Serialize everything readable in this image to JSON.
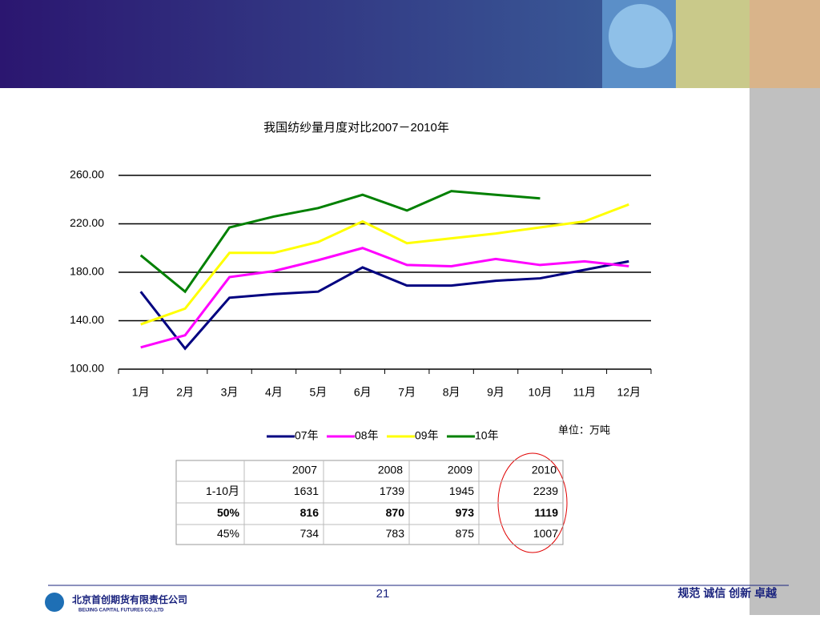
{
  "chart_data": {
    "type": "line",
    "title": "我国纺纱量月度对比2007－2010年",
    "categories": [
      "1月",
      "2月",
      "3月",
      "4月",
      "5月",
      "6月",
      "7月",
      "8月",
      "9月",
      "10月",
      "11月",
      "12月"
    ],
    "series": [
      {
        "name": "07年",
        "color": "#000080",
        "values": [
          164,
          117,
          159,
          162,
          164,
          184,
          169,
          169,
          173,
          175,
          182,
          189
        ]
      },
      {
        "name": "08年",
        "color": "#ff00ff",
        "values": [
          118,
          128,
          176,
          181,
          190,
          200,
          186,
          185,
          191,
          186,
          189,
          185
        ]
      },
      {
        "name": "09年",
        "color": "#ffff00",
        "values": [
          137,
          150,
          196,
          196,
          205,
          222,
          204,
          208,
          212,
          217,
          222,
          236
        ]
      },
      {
        "name": "10年",
        "color": "#008000",
        "values": [
          194,
          164,
          217,
          226,
          233,
          244,
          231,
          247,
          244,
          241,
          null,
          null
        ]
      }
    ],
    "ylim": [
      100,
      260
    ],
    "yticks": [
      {
        "value": 100,
        "label": "100.00"
      },
      {
        "value": 140,
        "label": "140.00"
      },
      {
        "value": 180,
        "label": "180.00"
      },
      {
        "value": 220,
        "label": "220.00"
      },
      {
        "value": 260,
        "label": "260.00"
      }
    ],
    "grid": true,
    "legend": "bottom",
    "unit_note": "单位：万吨"
  },
  "table": {
    "header": [
      "2007",
      "2008",
      "2009",
      "2010"
    ],
    "rows": [
      [
        "1-10月",
        "1631",
        "1739",
        "1945",
        "2239"
      ],
      [
        "50%",
        "816",
        "870",
        "973",
        "1119"
      ],
      [
        "45%",
        "734",
        "783",
        "875",
        "1007"
      ]
    ]
  },
  "footer": {
    "page": "21",
    "slogan": "规范 诚信 创新 卓越",
    "company": "北京首创期货有限责任公司",
    "company_en": "BEIJING CAPITAL FUTURES CO.,LTD"
  }
}
